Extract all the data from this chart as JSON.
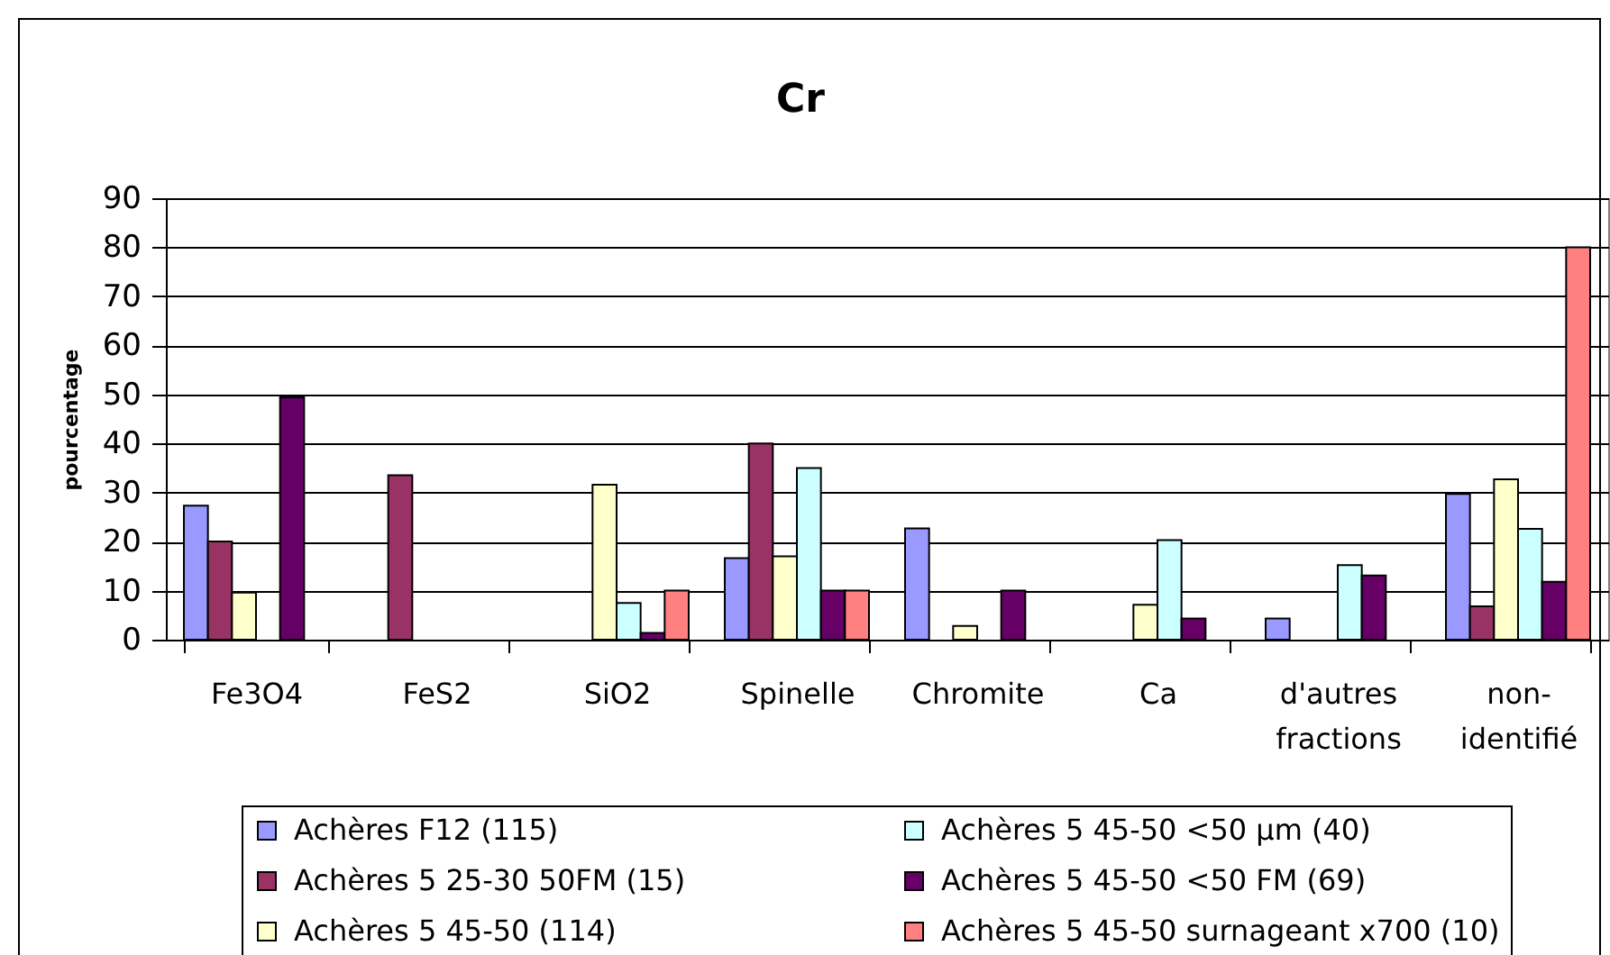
{
  "chart_data": {
    "type": "bar",
    "title": "Cr",
    "ylabel": "pourcentage",
    "categories": [
      "Fe3O4",
      "FeS2",
      "SiO2",
      "Spinelle",
      "Chromite",
      "Ca",
      "d'autres fractions",
      "non-identifié"
    ],
    "series": [
      {
        "name": "Achères F12 (115)",
        "color": "#9999ff",
        "values": [
          27.3,
          null,
          null,
          16.6,
          22.7,
          null,
          4.3,
          29.7
        ]
      },
      {
        "name": "Achères 5 25-30 50FM (15)",
        "color": "#993366",
        "values": [
          20,
          33.5,
          null,
          40,
          null,
          null,
          null,
          6.8
        ]
      },
      {
        "name": "Achères 5 45-50 (114)",
        "color": "#ffffcc",
        "values": [
          9.6,
          null,
          31.6,
          17,
          2.8,
          7.1,
          null,
          32.7
        ]
      },
      {
        "name": "Achères 5 45-50 <50 µm (40)",
        "color": "#ccffff",
        "values": [
          null,
          null,
          7.5,
          35,
          null,
          20.3,
          15.2,
          22.6
        ]
      },
      {
        "name": "Achères 5 45-50 <50 FM (69)",
        "color": "#660066",
        "values": [
          49.4,
          null,
          1.4,
          10,
          10,
          4.3,
          13.1,
          11.8
        ]
      },
      {
        "name": "Achères 5 45-50 surnageant x700 (10)",
        "color": "#ff8080",
        "values": [
          null,
          null,
          10,
          10,
          null,
          null,
          null,
          80
        ]
      }
    ],
    "ylim": [
      0,
      90
    ],
    "yticks": [
      0,
      10,
      20,
      30,
      40,
      50,
      60,
      70,
      80,
      90
    ],
    "grid": "y",
    "legend": "bottom"
  }
}
